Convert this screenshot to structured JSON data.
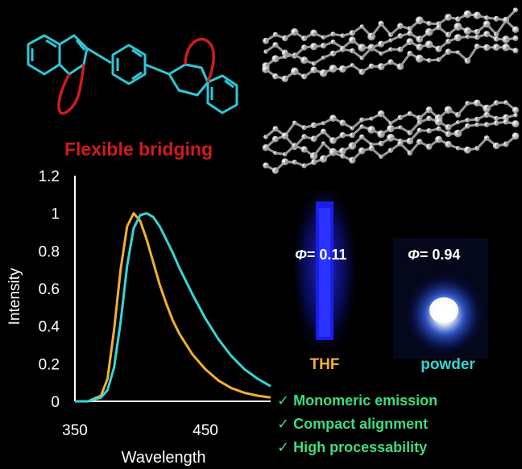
{
  "labels": {
    "bridge_caption": "Flexible bridging",
    "phi_thf": "= 0.11",
    "phi_powder": "= 0.94",
    "phi_symbol": "Φ",
    "thf": "THF",
    "powder": "powder"
  },
  "features": [
    "Monomeric emission",
    "Compact alignment",
    "High processability"
  ],
  "check_mark": "✓",
  "colors": {
    "molecule": "#2ec8d8",
    "bridge": "#d01c1c",
    "thf_curve": "#f2b12c",
    "powder_curve": "#35d6d6",
    "feature_text": "#3ddc84",
    "vial_glow": "#1b22ff"
  },
  "chart_data": {
    "type": "line",
    "xlabel": "Wavelength",
    "ylabel": "Intensity",
    "xlim": [
      350,
      500
    ],
    "ylim": [
      0,
      1.2
    ],
    "x_ticks": [
      350,
      450
    ],
    "y_ticks": [
      0,
      0.2,
      0.4,
      0.6,
      0.8,
      1,
      1.2
    ],
    "x": [
      350,
      360,
      370,
      375,
      380,
      385,
      390,
      395,
      400,
      405,
      410,
      415,
      420,
      425,
      430,
      440,
      450,
      460,
      470,
      480,
      490,
      500
    ],
    "series": [
      {
        "color": "#f2b12c",
        "values": [
          0.0,
          0.0,
          0.03,
          0.12,
          0.38,
          0.7,
          0.93,
          1.0,
          0.96,
          0.86,
          0.74,
          0.62,
          0.52,
          0.43,
          0.36,
          0.25,
          0.17,
          0.11,
          0.07,
          0.045,
          0.03,
          0.02
        ]
      },
      {
        "color": "#35d6d6",
        "values": [
          0.0,
          0.0,
          0.02,
          0.06,
          0.18,
          0.42,
          0.72,
          0.92,
          0.99,
          1.0,
          0.98,
          0.93,
          0.86,
          0.79,
          0.71,
          0.57,
          0.44,
          0.33,
          0.24,
          0.17,
          0.12,
          0.08
        ]
      }
    ]
  }
}
